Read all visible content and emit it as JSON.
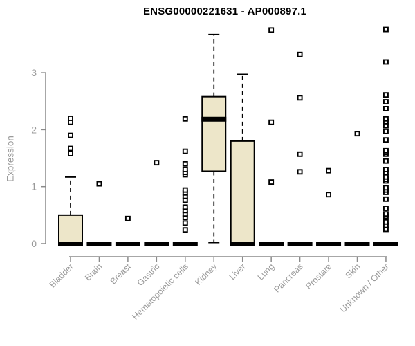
{
  "chart_data": {
    "type": "boxplot",
    "title": "ENSG00000221631 - AP000897.1",
    "ylabel": "Expression",
    "xlabel": "",
    "yticks": [
      0,
      1,
      2,
      3
    ],
    "ylim": [
      0,
      3.85
    ],
    "grid": false,
    "legend": false,
    "colors": {
      "box_fill": "#EDE6C9",
      "box_border": "#000000",
      "median": "#000000",
      "whisker": "#000000",
      "outlier_fill": "#ffffff",
      "axis": "#8a8a8a",
      "tick_label": "#9a9a9a",
      "title": "#000000",
      "background": "#ffffff"
    },
    "series": [
      {
        "name": "Bladder",
        "q1": 0,
        "median": 0,
        "q3": 0.5,
        "whisker_low": 0,
        "whisker_high": 1.17,
        "outliers": [
          1.58,
          1.67,
          1.9,
          2.13,
          2.2
        ]
      },
      {
        "name": "Brain",
        "q1": 0,
        "median": 0,
        "q3": 0,
        "whisker_low": 0,
        "whisker_high": 0,
        "outliers": [
          1.05
        ]
      },
      {
        "name": "Breast",
        "q1": 0,
        "median": 0,
        "q3": 0,
        "whisker_low": 0,
        "whisker_high": 0,
        "outliers": [
          0.44
        ]
      },
      {
        "name": "Gastric",
        "q1": 0,
        "median": 0,
        "q3": 0,
        "whisker_low": 0,
        "whisker_high": 0,
        "outliers": [
          1.42
        ]
      },
      {
        "name": "Hematopoietic cells",
        "q1": 0,
        "median": 0,
        "q3": 0,
        "whisker_low": 0,
        "whisker_high": 0,
        "outliers": [
          0.24,
          0.36,
          0.46,
          0.52,
          0.58,
          0.64,
          0.76,
          0.83,
          0.89,
          0.94,
          1.21,
          1.25,
          1.3,
          1.4,
          1.62,
          2.19
        ]
      },
      {
        "name": "Kidney",
        "q1": 1.27,
        "median": 2.19,
        "q3": 2.58,
        "whisker_low": 0.02,
        "whisker_high": 3.67,
        "outliers": []
      },
      {
        "name": "Liver",
        "q1": 0,
        "median": 0,
        "q3": 1.8,
        "whisker_low": 0,
        "whisker_high": 2.97,
        "outliers": []
      },
      {
        "name": "Lung",
        "q1": 0,
        "median": 0,
        "q3": 0,
        "whisker_low": 0,
        "whisker_high": 0,
        "outliers": [
          1.08,
          2.13,
          3.75
        ]
      },
      {
        "name": "Pancreas",
        "q1": 0,
        "median": 0,
        "q3": 0,
        "whisker_low": 0,
        "whisker_high": 0,
        "outliers": [
          1.26,
          1.57,
          2.56,
          3.32
        ]
      },
      {
        "name": "Prostate",
        "q1": 0,
        "median": 0,
        "q3": 0,
        "whisker_low": 0,
        "whisker_high": 0,
        "outliers": [
          0.86,
          1.28
        ]
      },
      {
        "name": "Skin",
        "q1": 0,
        "median": 0,
        "q3": 0,
        "whisker_low": 0,
        "whisker_high": 0,
        "outliers": [
          1.93
        ]
      },
      {
        "name": "Unknown / Other",
        "q1": 0,
        "median": 0,
        "q3": 0,
        "whisker_low": 0,
        "whisker_high": 0,
        "outliers": [
          0.25,
          0.32,
          0.38,
          0.48,
          0.52,
          0.62,
          0.78,
          0.9,
          0.94,
          0.98,
          1.1,
          1.13,
          1.17,
          1.25,
          1.3,
          1.45,
          1.57,
          1.6,
          1.63,
          1.82,
          1.97,
          2.07,
          2.14,
          2.19,
          2.37,
          2.49,
          2.61,
          3.19,
          3.76
        ]
      }
    ]
  }
}
